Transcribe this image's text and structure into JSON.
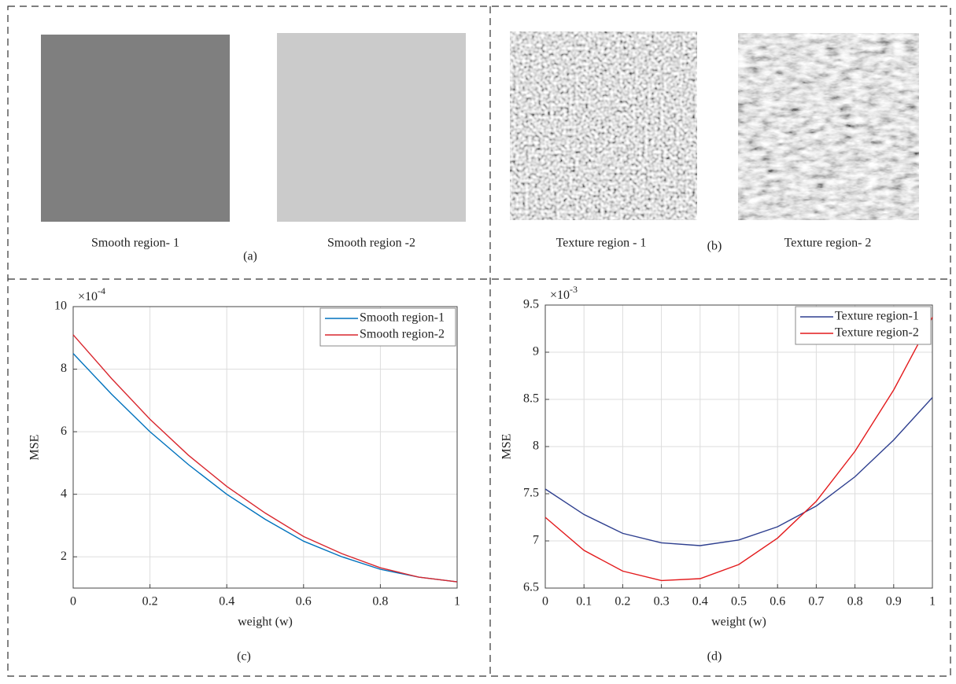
{
  "panels": {
    "a": {
      "images": [
        "Smooth region- 1",
        "Smooth region -2"
      ],
      "label": "(a)"
    },
    "b": {
      "images": [
        "Texture region - 1",
        "Texture region- 2"
      ],
      "label": "(b)"
    }
  },
  "chart_data": [
    {
      "type": "line",
      "label": "(c)",
      "xlabel": "weight (w)",
      "ylabel": "MSE",
      "exponent": {
        "base": "×10",
        "power": "-4"
      },
      "x": [
        0,
        0.1,
        0.2,
        0.3,
        0.4,
        0.5,
        0.6,
        0.7,
        0.8,
        0.9,
        1
      ],
      "series": [
        {
          "name": "Smooth region-1",
          "color": "#0072bd",
          "values": [
            8.5,
            7.2,
            6.0,
            4.95,
            4.0,
            3.2,
            2.5,
            2.0,
            1.6,
            1.35,
            1.2
          ]
        },
        {
          "name": "Smooth region-2",
          "color": "#d9272e",
          "values": [
            9.1,
            7.7,
            6.4,
            5.25,
            4.25,
            3.4,
            2.65,
            2.1,
            1.65,
            1.35,
            1.2
          ]
        }
      ],
      "xlim": [
        0,
        1
      ],
      "xticks": [
        0,
        0.2,
        0.4,
        0.6,
        0.8,
        1
      ],
      "ylim": [
        1,
        10
      ],
      "yticks": [
        2,
        4,
        6,
        8,
        10
      ],
      "grid": true,
      "legend": "top-right"
    },
    {
      "type": "line",
      "label": "(d)",
      "xlabel": "weight (w)",
      "ylabel": "MSE",
      "exponent": {
        "base": "×10",
        "power": "-3"
      },
      "x": [
        0,
        0.1,
        0.2,
        0.3,
        0.4,
        0.5,
        0.6,
        0.7,
        0.8,
        0.9,
        1
      ],
      "series": [
        {
          "name": "Texture region-1",
          "color": "#2e3f8f",
          "values": [
            7.55,
            7.28,
            7.08,
            6.98,
            6.95,
            7.01,
            7.15,
            7.37,
            7.68,
            8.07,
            8.52
          ]
        },
        {
          "name": "Texture region-2",
          "color": "#e31a1c",
          "values": [
            7.25,
            6.9,
            6.68,
            6.58,
            6.6,
            6.75,
            7.03,
            7.42,
            7.95,
            8.6,
            9.37
          ]
        }
      ],
      "xlim": [
        0,
        1
      ],
      "xticks": [
        0,
        0.1,
        0.2,
        0.3,
        0.4,
        0.5,
        0.6,
        0.7,
        0.8,
        0.9,
        1
      ],
      "ylim": [
        6.5,
        9.5
      ],
      "yticks": [
        6.5,
        7,
        7.5,
        8,
        8.5,
        9,
        9.5
      ],
      "grid": true,
      "legend": "top-right"
    }
  ]
}
